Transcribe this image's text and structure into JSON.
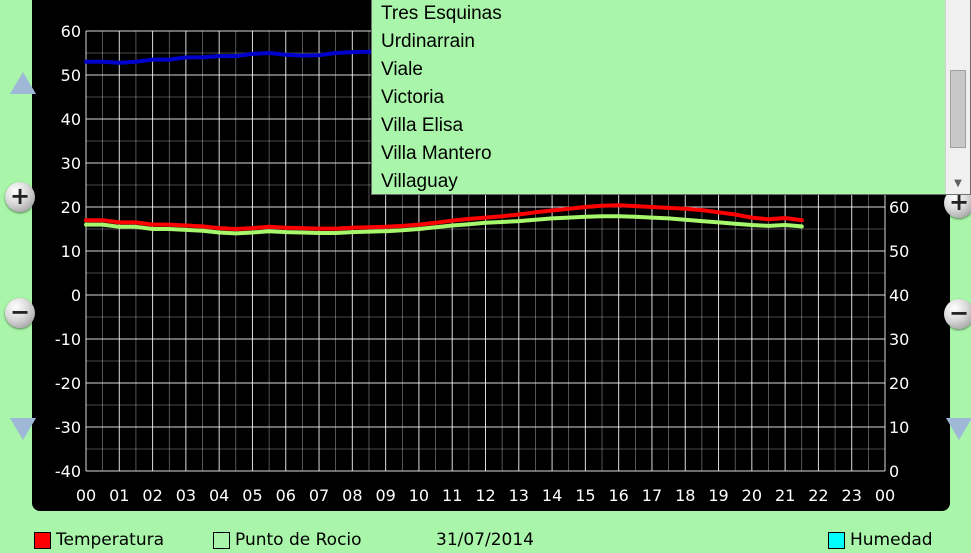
{
  "chart_data": {
    "type": "line",
    "x_ticks": [
      "00",
      "01",
      "02",
      "03",
      "04",
      "05",
      "06",
      "07",
      "08",
      "09",
      "10",
      "11",
      "12",
      "13",
      "14",
      "15",
      "16",
      "17",
      "18",
      "19",
      "20",
      "21",
      "22",
      "23",
      "00"
    ],
    "y_left_ticks": [
      "60",
      "50",
      "40",
      "30",
      "20",
      "10",
      "0",
      "-10",
      "-20",
      "-30",
      "-40"
    ],
    "y_left_range": [
      -40,
      60
    ],
    "y_right_ticks": [
      "60",
      "50",
      "40",
      "30",
      "20",
      "10",
      "0"
    ],
    "y_right_range": [
      0,
      100
    ],
    "grid": true,
    "series": [
      {
        "name": "Temperatura",
        "axis": "left",
        "color": "#ff0000",
        "x": [
          0,
          0.5,
          1,
          1.5,
          2,
          2.5,
          3,
          3.5,
          4,
          4.5,
          5,
          5.5,
          6,
          6.5,
          7,
          7.5,
          8,
          8.5,
          9,
          9.5,
          10,
          10.5,
          11,
          11.5,
          12,
          12.5,
          13,
          13.5,
          14,
          14.5,
          15,
          15.5,
          16,
          16.5,
          17,
          17.5,
          18,
          18.5,
          19,
          19.5,
          20,
          20.5,
          21,
          21.5
        ],
        "y": [
          17,
          17,
          16.5,
          16.5,
          16,
          16,
          15.8,
          15.6,
          15.2,
          15,
          15.2,
          15.5,
          15.3,
          15.2,
          15.1,
          15.1,
          15.3,
          15.4,
          15.5,
          15.7,
          16,
          16.4,
          16.9,
          17.3,
          17.6,
          17.9,
          18.3,
          18.8,
          19.2,
          19.6,
          20,
          20.3,
          20.4,
          20.2,
          20,
          19.8,
          19.6,
          19.3,
          18.8,
          18.3,
          17.6,
          17.2,
          17.5,
          17
        ]
      },
      {
        "name": "Punto de Rocio",
        "axis": "left",
        "color": "#a6f76c",
        "x": [
          0,
          0.5,
          1,
          1.5,
          2,
          2.5,
          3,
          3.5,
          4,
          4.5,
          5,
          5.5,
          6,
          6.5,
          7,
          7.5,
          8,
          8.5,
          9,
          9.5,
          10,
          10.5,
          11,
          11.5,
          12,
          12.5,
          13,
          13.5,
          14,
          14.5,
          15,
          15.5,
          16,
          16.5,
          17,
          17.5,
          18,
          18.5,
          19,
          19.5,
          20,
          20.5,
          21,
          21.5
        ],
        "y": [
          16,
          16,
          15.5,
          15.5,
          15,
          15,
          14.8,
          14.6,
          14.2,
          14,
          14.2,
          14.5,
          14.3,
          14.2,
          14.1,
          14.1,
          14.3,
          14.4,
          14.5,
          14.7,
          15,
          15.4,
          15.8,
          16.1,
          16.4,
          16.6,
          16.8,
          17.1,
          17.4,
          17.6,
          17.8,
          17.9,
          17.9,
          17.8,
          17.6,
          17.4,
          17.1,
          16.8,
          16.5,
          16.2,
          15.9,
          15.7,
          15.9,
          15.6
        ]
      },
      {
        "name": "Humedad",
        "axis": "right",
        "color": "#0000cc",
        "x": [
          0,
          0.5,
          1,
          1.5,
          2,
          2.5,
          3,
          3.5,
          4,
          4.5,
          5,
          5.5,
          6,
          6.5,
          7,
          7.5,
          8,
          8.5,
          9,
          9.5
        ],
        "y": [
          93,
          93,
          92.8,
          93,
          93.5,
          93.5,
          94,
          94,
          94.3,
          94.3,
          94.8,
          95,
          94.6,
          94.4,
          94.5,
          95,
          95.2,
          95.3,
          95.5,
          95.7
        ]
      }
    ]
  },
  "dropdown": {
    "items": [
      "Tres Esquinas",
      "Urdinarrain",
      "Viale",
      "Victoria",
      "Villa Elisa",
      "Villa Mantero",
      "Villaguay"
    ],
    "scroll_down_glyph": "▼"
  },
  "controls": {
    "zoom_in_glyph": "+",
    "zoom_out_glyph": "−"
  },
  "legend": {
    "temperatura": {
      "label": "Temperatura",
      "color": "#ff0000"
    },
    "punto_de_rocio": {
      "label": "Punto de Rocio",
      "color": "#a9f5a9"
    },
    "date": "31/07/2014",
    "humedad": {
      "label": "Humedad",
      "color": "#00ffff"
    }
  },
  "colors": {
    "background": "#a9f5a9",
    "panel": "#000000",
    "grid": "#ffffff"
  }
}
